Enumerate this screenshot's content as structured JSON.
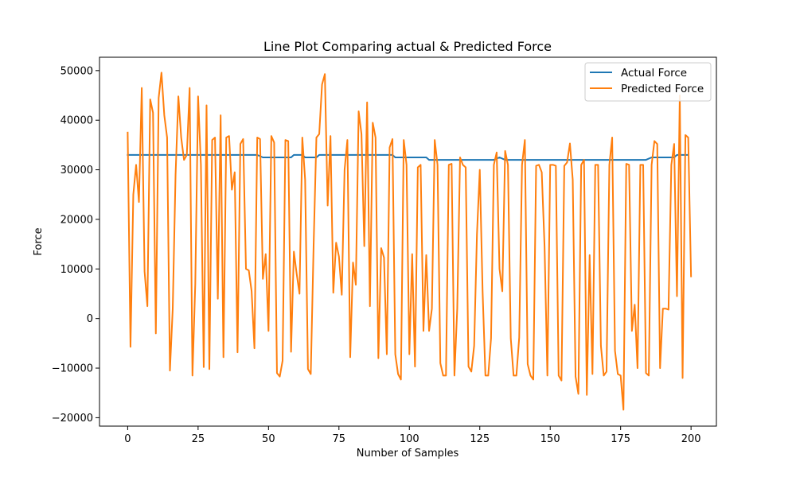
{
  "chart_data": {
    "type": "line",
    "title": "Line Plot Comparing actual & Predicted Force",
    "xlabel": "Number of Samples",
    "ylabel": "Force",
    "xlim": [
      -10,
      209
    ],
    "ylim": [
      -21700,
      52700
    ],
    "xticks": [
      0,
      25,
      50,
      75,
      100,
      125,
      150,
      175,
      200
    ],
    "yticks": [
      -20000,
      -10000,
      0,
      10000,
      20000,
      30000,
      40000,
      50000
    ],
    "xtick_labels": [
      "0",
      "25",
      "50",
      "75",
      "100",
      "125",
      "150",
      "175",
      "200"
    ],
    "ytick_labels": [
      "−20000",
      "−10000",
      "0",
      "10000",
      "20000",
      "30000",
      "40000",
      "50000"
    ],
    "grid": false,
    "legend_position": "top-right",
    "series": [
      {
        "name": "Actual Force",
        "color": "#1f77b4",
        "points": [
          [
            0,
            33000
          ],
          [
            46,
            33000
          ],
          [
            48,
            32500
          ],
          [
            58,
            32500
          ],
          [
            59,
            33000
          ],
          [
            62,
            33000
          ],
          [
            63,
            32500
          ],
          [
            67,
            32500
          ],
          [
            68,
            33000
          ],
          [
            94,
            33000
          ],
          [
            95,
            32500
          ],
          [
            106,
            32500
          ],
          [
            107,
            32000
          ],
          [
            130,
            32000
          ],
          [
            132,
            32500
          ],
          [
            134,
            32000
          ],
          [
            184,
            32000
          ],
          [
            186,
            32500
          ],
          [
            194,
            32500
          ],
          [
            195,
            33000
          ],
          [
            199,
            33000
          ]
        ]
      },
      {
        "name": "Predicted Force",
        "color": "#ff7f0e",
        "points": [
          [
            0,
            37500
          ],
          [
            1,
            -5700
          ],
          [
            2,
            25000
          ],
          [
            3,
            31000
          ],
          [
            4,
            23500
          ],
          [
            5,
            46500
          ],
          [
            6,
            9500
          ],
          [
            7,
            2500
          ],
          [
            8,
            44200
          ],
          [
            9,
            41500
          ],
          [
            10,
            -3000
          ],
          [
            11,
            44500
          ],
          [
            12,
            49600
          ],
          [
            13,
            41000
          ],
          [
            14,
            36500
          ],
          [
            15,
            -10500
          ],
          [
            16,
            2000
          ],
          [
            17,
            29000
          ],
          [
            18,
            44800
          ],
          [
            19,
            36500
          ],
          [
            20,
            32000
          ],
          [
            21,
            33000
          ],
          [
            22,
            46500
          ],
          [
            23,
            -11500
          ],
          [
            24,
            7000
          ],
          [
            25,
            44800
          ],
          [
            26,
            31000
          ],
          [
            27,
            -9800
          ],
          [
            28,
            43000
          ],
          [
            29,
            -10200
          ],
          [
            30,
            36000
          ],
          [
            31,
            36500
          ],
          [
            32,
            4000
          ],
          [
            33,
            41000
          ],
          [
            34,
            -7800
          ],
          [
            35,
            36500
          ],
          [
            36,
            36800
          ],
          [
            37,
            26000
          ],
          [
            38,
            29500
          ],
          [
            39,
            -6800
          ],
          [
            40,
            35200
          ],
          [
            41,
            36200
          ],
          [
            42,
            10000
          ],
          [
            43,
            9700
          ],
          [
            44,
            5500
          ],
          [
            45,
            -6000
          ],
          [
            46,
            36500
          ],
          [
            47,
            36200
          ],
          [
            48,
            8000
          ],
          [
            49,
            13000
          ],
          [
            50,
            -2500
          ],
          [
            51,
            36800
          ],
          [
            52,
            35500
          ],
          [
            53,
            -11000
          ],
          [
            54,
            -11700
          ],
          [
            55,
            -8500
          ],
          [
            56,
            36000
          ],
          [
            57,
            35800
          ],
          [
            58,
            -6700
          ],
          [
            59,
            13500
          ],
          [
            60,
            9000
          ],
          [
            61,
            5000
          ],
          [
            62,
            36500
          ],
          [
            63,
            28000
          ],
          [
            64,
            -10200
          ],
          [
            65,
            -11200
          ],
          [
            66,
            14500
          ],
          [
            67,
            36500
          ],
          [
            68,
            37200
          ],
          [
            69,
            47200
          ],
          [
            70,
            49300
          ],
          [
            71,
            22800
          ],
          [
            72,
            36800
          ],
          [
            73,
            5200
          ],
          [
            74,
            15300
          ],
          [
            75,
            12500
          ],
          [
            76,
            4800
          ],
          [
            77,
            30000
          ],
          [
            78,
            36000
          ],
          [
            79,
            -7800
          ],
          [
            80,
            11300
          ],
          [
            81,
            6800
          ],
          [
            82,
            41800
          ],
          [
            83,
            37200
          ],
          [
            84,
            14600
          ],
          [
            85,
            43600
          ],
          [
            86,
            2500
          ],
          [
            87,
            39500
          ],
          [
            88,
            36500
          ],
          [
            89,
            -8000
          ],
          [
            90,
            14200
          ],
          [
            91,
            12300
          ],
          [
            92,
            -7200
          ],
          [
            93,
            34500
          ],
          [
            94,
            36200
          ],
          [
            95,
            -7200
          ],
          [
            96,
            -11200
          ],
          [
            97,
            -12300
          ],
          [
            98,
            36000
          ],
          [
            99,
            31000
          ],
          [
            100,
            -7200
          ],
          [
            101,
            13000
          ],
          [
            102,
            -9700
          ],
          [
            103,
            30500
          ],
          [
            104,
            31000
          ],
          [
            105,
            -2500
          ],
          [
            106,
            12800
          ],
          [
            107,
            -2500
          ],
          [
            108,
            2000
          ],
          [
            109,
            36000
          ],
          [
            110,
            31000
          ],
          [
            111,
            -9000
          ],
          [
            112,
            -11500
          ],
          [
            113,
            -11500
          ],
          [
            114,
            31000
          ],
          [
            115,
            31200
          ],
          [
            116,
            -11500
          ],
          [
            117,
            2000
          ],
          [
            118,
            32500
          ],
          [
            119,
            31000
          ],
          [
            120,
            30500
          ],
          [
            121,
            -9700
          ],
          [
            122,
            -10700
          ],
          [
            123,
            -5500
          ],
          [
            124,
            17000
          ],
          [
            125,
            30000
          ],
          [
            126,
            5500
          ],
          [
            127,
            -11500
          ],
          [
            128,
            -11500
          ],
          [
            129,
            -4000
          ],
          [
            130,
            31000
          ],
          [
            131,
            33500
          ],
          [
            132,
            10000
          ],
          [
            133,
            5500
          ],
          [
            134,
            33800
          ],
          [
            135,
            31000
          ],
          [
            136,
            -4000
          ],
          [
            137,
            -11500
          ],
          [
            138,
            -11500
          ],
          [
            139,
            -3800
          ],
          [
            140,
            31000
          ],
          [
            141,
            36000
          ],
          [
            142,
            -9200
          ],
          [
            143,
            -11500
          ],
          [
            144,
            -12300
          ],
          [
            145,
            30800
          ],
          [
            146,
            31000
          ],
          [
            147,
            29500
          ],
          [
            148,
            14500
          ],
          [
            149,
            -11500
          ],
          [
            150,
            31000
          ],
          [
            151,
            31000
          ],
          [
            152,
            30800
          ],
          [
            153,
            -11500
          ],
          [
            154,
            -12500
          ],
          [
            155,
            30800
          ],
          [
            156,
            31500
          ],
          [
            157,
            35300
          ],
          [
            158,
            28000
          ],
          [
            159,
            -11700
          ],
          [
            160,
            -15200
          ],
          [
            161,
            31000
          ],
          [
            162,
            32000
          ],
          [
            163,
            -15400
          ],
          [
            164,
            12800
          ],
          [
            165,
            -11200
          ],
          [
            166,
            31000
          ],
          [
            167,
            31000
          ],
          [
            168,
            -5500
          ],
          [
            169,
            -11500
          ],
          [
            170,
            -10700
          ],
          [
            171,
            31000
          ],
          [
            172,
            36500
          ],
          [
            173,
            -6500
          ],
          [
            174,
            -11200
          ],
          [
            175,
            -11500
          ],
          [
            176,
            -18400
          ],
          [
            177,
            31200
          ],
          [
            178,
            31000
          ],
          [
            179,
            -2500
          ],
          [
            180,
            2800
          ],
          [
            181,
            -10000
          ],
          [
            182,
            31000
          ],
          [
            183,
            31000
          ],
          [
            184,
            -11000
          ],
          [
            185,
            -11500
          ],
          [
            186,
            31000
          ],
          [
            187,
            35800
          ],
          [
            188,
            35200
          ],
          [
            189,
            -10000
          ],
          [
            190,
            2000
          ],
          [
            191,
            2000
          ],
          [
            192,
            1800
          ],
          [
            193,
            31000
          ],
          [
            194,
            35200
          ],
          [
            195,
            4500
          ],
          [
            196,
            45000
          ],
          [
            197,
            -12000
          ],
          [
            198,
            37000
          ],
          [
            199,
            36500
          ],
          [
            200,
            8500
          ]
        ]
      }
    ]
  }
}
